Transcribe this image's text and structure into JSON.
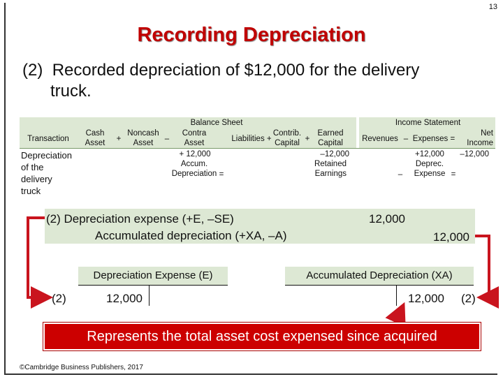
{
  "page_number": "13",
  "title": "Recording Depreciation",
  "subtitle": {
    "num": "(2)",
    "line1": "Recorded depreciation of $12,000 for the delivery",
    "line2": "truck."
  },
  "table": {
    "balance_sheet": "Balance Sheet",
    "income_statement": "Income Statement",
    "transaction_header": "Transaction",
    "cash": [
      "Cash",
      "Asset"
    ],
    "plus1": "+",
    "noncash": [
      "Noncash",
      "Asset"
    ],
    "minus1": "–",
    "contra": [
      "Contra",
      "Asset"
    ],
    "liabilities": "Liabilities +",
    "contrib": [
      "Contrib.",
      "Capital"
    ],
    "plus2": "+",
    "earned": [
      "Earned",
      "Capital"
    ],
    "revenues": "Revenues",
    "minus2": "–",
    "expenses": "Expenses =",
    "net_income": [
      "Net",
      "Income"
    ],
    "row_label": [
      "Depreciation",
      "of the",
      "delivery",
      "truck"
    ],
    "contra_value": "+ 12,000",
    "contra_value_label": [
      "Accum.",
      "Depreciation"
    ],
    "eq1": "=",
    "earned_value": "–12,000",
    "earned_value_label": [
      "Retained",
      "Earnings"
    ],
    "expense_value": "+12,000",
    "expense_value_label": [
      "Deprec.",
      "Expense"
    ],
    "minus3": "–",
    "eq2": "=",
    "net_value": "–12,000"
  },
  "journal": {
    "line1": "(2)  Depreciation expense (+E, –SE)",
    "line2": "Accumulated depreciation (+XA, –A)",
    "debit": "12,000",
    "credit": "12,000"
  },
  "t_accounts": {
    "left_title": "Depreciation Expense (E)",
    "left_ref": "(2)",
    "left_amount": "12,000",
    "right_title": "Accumulated Depreciation (XA)",
    "right_amount": "12,000",
    "right_ref": "(2)"
  },
  "caption": "Represents the total asset cost expensed since acquired",
  "footer": "©Cambridge Business Publishers, 2017",
  "colors": {
    "title": "#c00000",
    "band": "#dde8d4",
    "arrow": "#c9141e"
  }
}
